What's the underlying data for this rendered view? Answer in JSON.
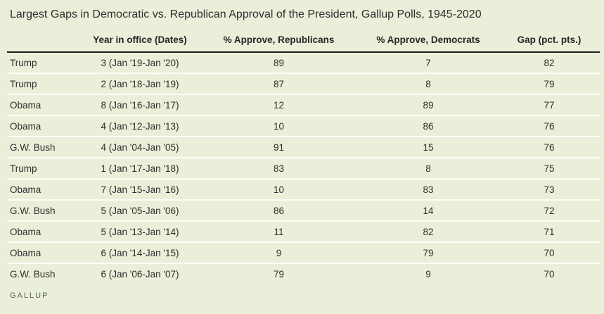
{
  "style": {
    "background_color": "#e9efd9",
    "header_rule_color": "#1e1e1e",
    "row_separator_color": "#fdfef8",
    "text_color": "#2e2e2e",
    "source_color": "#5d625c"
  },
  "chart_data": {
    "type": "table",
    "title": "Largest Gaps in Democratic vs. Republican Approval of the President, Gallup Polls, 1945-2020",
    "columns": [
      "",
      "Year in office (Dates)",
      "% Approve, Republicans",
      "% Approve, Democrats",
      "Gap (pct. pts.)"
    ],
    "rows": [
      [
        "Trump",
        "3 (Jan '19-Jan '20)",
        "89",
        "7",
        "82"
      ],
      [
        "Trump",
        "2 (Jan '18-Jan '19)",
        "87",
        "8",
        "79"
      ],
      [
        "Obama",
        "8 (Jan '16-Jan '17)",
        "12",
        "89",
        "77"
      ],
      [
        "Obama",
        "4 (Jan '12-Jan '13)",
        "10",
        "86",
        "76"
      ],
      [
        "G.W. Bush",
        "4 (Jan '04-Jan '05)",
        "91",
        "15",
        "76"
      ],
      [
        "Trump",
        "1 (Jan '17-Jan '18)",
        "83",
        "8",
        "75"
      ],
      [
        "Obama",
        "7 (Jan '15-Jan '16)",
        "10",
        "83",
        "73"
      ],
      [
        "G.W. Bush",
        "5 (Jan '05-Jan '06)",
        "86",
        "14",
        "72"
      ],
      [
        "Obama",
        "5 (Jan '13-Jan '14)",
        "11",
        "82",
        "71"
      ],
      [
        "Obama",
        "6 (Jan '14-Jan '15)",
        "9",
        "79",
        "70"
      ],
      [
        "G.W. Bush",
        "6 (Jan '06-Jan '07)",
        "79",
        "9",
        "70"
      ]
    ],
    "source": "GALLUP"
  }
}
